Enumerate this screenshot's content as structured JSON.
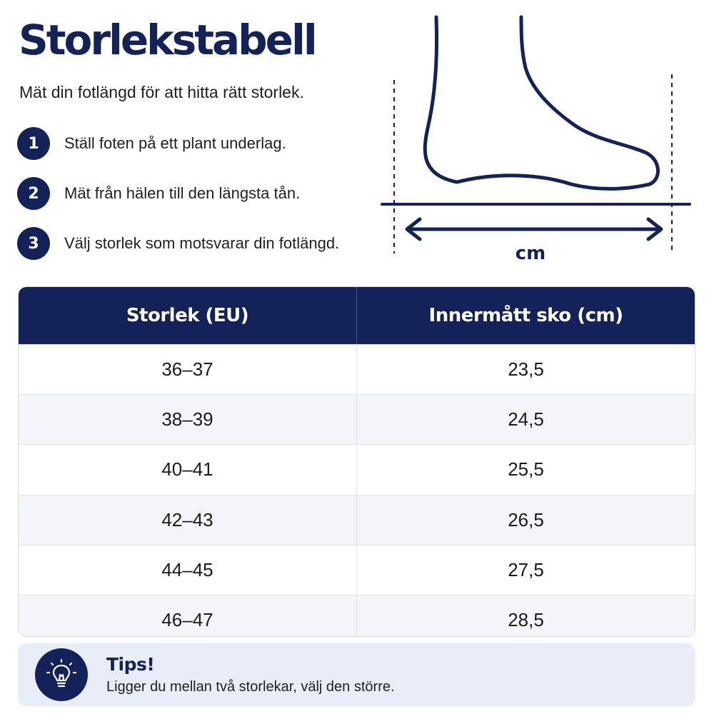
{
  "header": {
    "title": "Storlekstabell",
    "subtitle": "Mät din fotlängd för att hitta rätt storlek."
  },
  "steps": [
    {
      "number": "1",
      "text": "Ställ foten på ett plant underlag."
    },
    {
      "number": "2",
      "text": "Mät från hälen till den längsta tån."
    },
    {
      "number": "3",
      "text": "Välj storlek som motsvarar din fotlängd."
    }
  ],
  "illustration": {
    "icon": "foot-measure-icon",
    "unit_label": "cm"
  },
  "table": {
    "headers": [
      "Storlek (EU)",
      "Innermått sko (cm)"
    ],
    "rows": [
      [
        "36–37",
        "23,5"
      ],
      [
        "38–39",
        "24,5"
      ],
      [
        "40–41",
        "25,5"
      ],
      [
        "42–43",
        "26,5"
      ],
      [
        "44–45",
        "27,5"
      ],
      [
        "46–47",
        "28,5"
      ]
    ]
  },
  "tips": {
    "icon": "lightbulb-icon",
    "title": "Tips!",
    "text": "Ligger du mellan två storlekar, välj den större."
  },
  "colors": {
    "primary": "#13235a",
    "tips_background": "#e8edf8",
    "row_alt": "#f4f5f8"
  }
}
